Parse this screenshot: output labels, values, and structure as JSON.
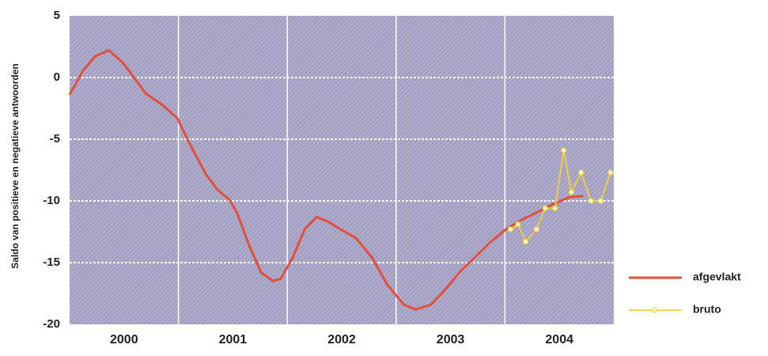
{
  "chart_data": {
    "type": "line",
    "y_label": "Saldo van positieve en negatieve antwoorden",
    "xlim": [
      2000,
      2005
    ],
    "xticks": [
      {
        "value": 2000.5,
        "label": "2000"
      },
      {
        "value": 2001.5,
        "label": "2001"
      },
      {
        "value": 2002.5,
        "label": "2002"
      },
      {
        "value": 2003.5,
        "label": "2003"
      },
      {
        "value": 2004.5,
        "label": "2004"
      }
    ],
    "xgrid": [
      2001,
      2002,
      2003,
      2004
    ],
    "ylim": [
      -20,
      5
    ],
    "yticks": [
      5,
      0,
      -5,
      -10,
      -15,
      -20
    ],
    "grid": true,
    "legend": "right",
    "series": [
      {
        "name": "afgevlakt",
        "color": "#e0503a",
        "markers": false,
        "x": [
          2000.0,
          2000.12,
          2000.23,
          2000.36,
          2000.49,
          2000.6,
          2000.7,
          2000.85,
          2000.99,
          2001.1,
          2001.25,
          2001.36,
          2001.47,
          2001.54,
          2001.65,
          2001.76,
          2001.87,
          2001.94,
          2002.05,
          2002.16,
          2002.27,
          2002.38,
          2002.49,
          2002.63,
          2002.78,
          2002.92,
          2003.07,
          2003.18,
          2003.32,
          2003.43,
          2003.58,
          2003.72,
          2003.87,
          2004.01,
          2004.16,
          2004.3,
          2004.43,
          2004.59,
          2004.72
        ],
        "values": [
          -1.4,
          0.5,
          1.7,
          2.2,
          1.2,
          -0.1,
          -1.3,
          -2.2,
          -3.3,
          -5.3,
          -7.8,
          -9.1,
          -9.9,
          -11,
          -13.6,
          -15.8,
          -16.5,
          -16.3,
          -14.6,
          -12.3,
          -11.3,
          -11.7,
          -12.3,
          -13,
          -14.6,
          -16.8,
          -18.4,
          -18.8,
          -18.4,
          -17.4,
          -15.8,
          -14.6,
          -13.3,
          -12.3,
          -11.5,
          -10.9,
          -10.3,
          -9.7,
          -9.6
        ]
      },
      {
        "name": "bruto",
        "color": "#f2d23a",
        "markers": true,
        "x": [
          2004.05,
          2004.12,
          2004.19,
          2004.29,
          2004.37,
          2004.46,
          2004.54,
          2004.61,
          2004.7,
          2004.79,
          2004.88,
          2004.97
        ],
        "values": [
          -12.3,
          -11.9,
          -13.3,
          -12.3,
          -10.6,
          -10.6,
          -5.9,
          -9.3,
          -7.7,
          -10,
          -10,
          -7.7
        ]
      }
    ]
  }
}
